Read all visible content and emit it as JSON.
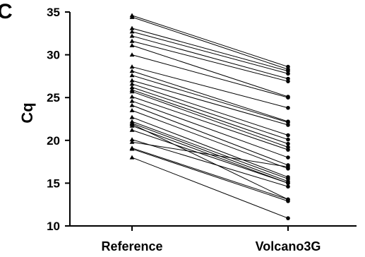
{
  "panel_label": "C",
  "chart_data": {
    "type": "line",
    "title": "",
    "xlabel": "",
    "ylabel": "Cq",
    "categories": [
      "Reference",
      "Volcano3G"
    ],
    "ylim": [
      10,
      35
    ],
    "yticks": [
      10,
      15,
      20,
      25,
      30,
      35
    ],
    "grid": false,
    "legend": "none",
    "marker": "triangle",
    "line_color": "#000000",
    "pairs": [
      [
        34.6,
        28.6
      ],
      [
        34.4,
        28.3
      ],
      [
        33.1,
        28.1
      ],
      [
        32.7,
        27.8
      ],
      [
        32.2,
        27.2
      ],
      [
        31.6,
        26.9
      ],
      [
        31.1,
        25.1
      ],
      [
        30.0,
        25.0
      ],
      [
        28.6,
        23.8
      ],
      [
        28.1,
        22.2
      ],
      [
        27.6,
        22.1
      ],
      [
        27.0,
        21.8
      ],
      [
        26.6,
        20.6
      ],
      [
        26.2,
        20.1
      ],
      [
        25.9,
        19.6
      ],
      [
        25.7,
        19.2
      ],
      [
        25.1,
        18.9
      ],
      [
        24.6,
        18.0
      ],
      [
        24.1,
        17.1
      ],
      [
        23.5,
        16.7
      ],
      [
        22.7,
        15.7
      ],
      [
        22.2,
        15.5
      ],
      [
        22.0,
        15.2
      ],
      [
        21.7,
        15.0
      ],
      [
        21.2,
        15.0
      ],
      [
        20.1,
        14.6
      ],
      [
        19.1,
        13.1
      ],
      [
        19.0,
        12.9
      ],
      [
        18.0,
        10.9
      ],
      [
        21.9,
        13.1
      ],
      [
        19.8,
        16.9
      ]
    ]
  }
}
